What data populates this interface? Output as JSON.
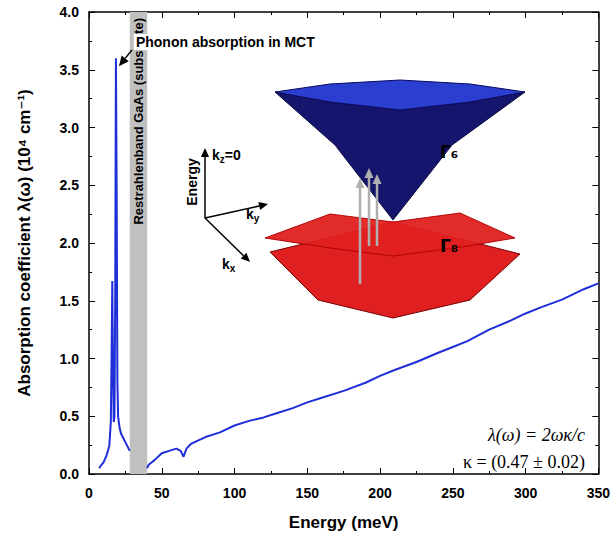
{
  "chart_data": {
    "type": "line",
    "x_label": "Energy (meV)",
    "y_label": "Absorption coefficient λ(ω) (10⁴ cm⁻¹)",
    "x": [
      7,
      8,
      10,
      12,
      13,
      14,
      15,
      15.5,
      16,
      16.5,
      17,
      17.5,
      18,
      18.5,
      19,
      19.5,
      20,
      21,
      22,
      24,
      26,
      28,
      34,
      40,
      41,
      43,
      45,
      50,
      55,
      60,
      63,
      65,
      67,
      70,
      80,
      90,
      100,
      110,
      120,
      130,
      140,
      150,
      160,
      175,
      190,
      200,
      210,
      225,
      240,
      250,
      260,
      275,
      290,
      300,
      310,
      325,
      340,
      350
    ],
    "values": [
      0.05,
      0.07,
      0.1,
      0.16,
      0.2,
      0.25,
      0.45,
      1.0,
      1.67,
      0.9,
      0.45,
      0.5,
      1.5,
      3.6,
      2.5,
      0.8,
      0.5,
      0.4,
      0.35,
      0.3,
      0.25,
      0.2,
      null,
      0.05,
      0.08,
      0.1,
      0.12,
      0.18,
      0.2,
      0.22,
      0.2,
      0.15,
      0.22,
      0.26,
      0.32,
      0.36,
      0.42,
      0.46,
      0.49,
      0.53,
      0.57,
      0.62,
      0.66,
      0.72,
      0.79,
      0.85,
      0.9,
      0.97,
      1.05,
      1.1,
      1.15,
      1.25,
      1.33,
      1.39,
      1.44,
      1.51,
      1.6,
      1.65
    ],
    "color": "#1f2fd8",
    "xlim": [
      0,
      350
    ],
    "xticks": [
      0,
      50,
      100,
      150,
      200,
      250,
      300,
      350
    ],
    "ylim": [
      0,
      4
    ],
    "yticks": [
      {
        "value": 0,
        "label": "0.0"
      },
      {
        "value": 0.5,
        "label": "0.5"
      },
      {
        "value": 1,
        "label": "1.0"
      },
      {
        "value": 1.5,
        "label": "1.5"
      },
      {
        "value": 2,
        "label": "2.0"
      },
      {
        "value": 2.5,
        "label": "2.5"
      },
      {
        "value": 3,
        "label": "3.0"
      },
      {
        "value": 3.5,
        "label": "3.5"
      },
      {
        "value": 4,
        "label": "4.0"
      }
    ],
    "grid": false,
    "shaded_band": {
      "xlim": [
        28,
        40
      ],
      "label": "Restrahlenband GaAs (substrate)",
      "color": "#c0c0c0"
    },
    "annotations": [
      {
        "text": "Phonon absorption in MCT",
        "x": 18.5,
        "y": 3.6
      }
    ],
    "formula": [
      "λ(ω) = 2ωκ/c",
      "κ = (0.47 ± 0.02)"
    ],
    "inset": {
      "axis_labels": [
        "Energy",
        "kz=0",
        "ky",
        "kx"
      ],
      "bands": [
        {
          "label": "Γ₆",
          "color": "#2a3fd0"
        },
        {
          "label": "Γ₈",
          "color": "#e02020"
        }
      ]
    }
  }
}
